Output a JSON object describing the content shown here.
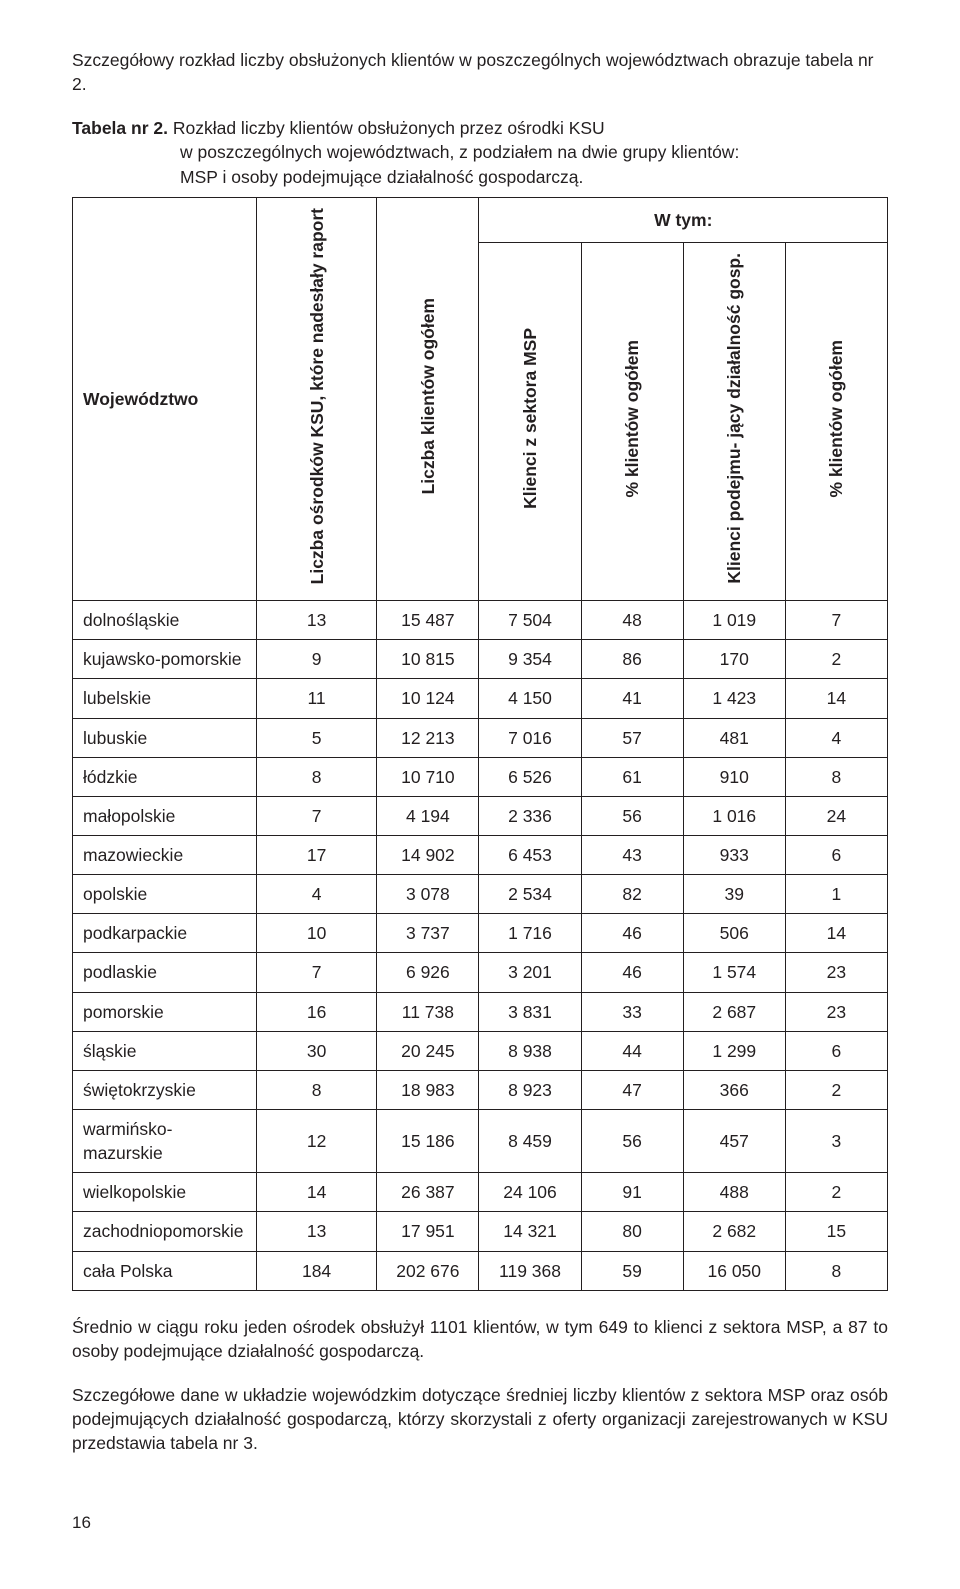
{
  "intro": "Szczegółowy rozkład liczby obsłużonych klientów w poszczególnych województwach obrazuje tabela nr 2.",
  "caption": {
    "label": "Tabela nr 2.",
    "desc_line1": "Rozkład liczby klientów obsłużonych przez ośrodki KSU",
    "desc_line2": "w poszczególnych województwach, z podziałem na dwie grupy klientów:",
    "desc_line3": "MSP i osoby podejmujące działalność gospodarczą."
  },
  "headers": {
    "row": "Województwo",
    "c1": "Liczba ośrodków\nKSU, które nadesłały\nraport",
    "c2": "Liczba klientów\nogółem",
    "group": "W tym:",
    "c3": "Klienci z sektora\nMSP",
    "c4": "% klientów\nogółem",
    "c5": "Klienci podejmu-\njący działalność\ngosp.",
    "c6": "% klientów\nogółem"
  },
  "rows": [
    {
      "name": "dolnośląskie",
      "v": [
        "13",
        "15 487",
        "7 504",
        "48",
        "1 019",
        "7"
      ]
    },
    {
      "name": "kujawsko-pomorskie",
      "v": [
        "9",
        "10 815",
        "9 354",
        "86",
        "170",
        "2"
      ]
    },
    {
      "name": "lubelskie",
      "v": [
        "11",
        "10 124",
        "4 150",
        "41",
        "1 423",
        "14"
      ]
    },
    {
      "name": "lubuskie",
      "v": [
        "5",
        "12 213",
        "7 016",
        "57",
        "481",
        "4"
      ]
    },
    {
      "name": "łódzkie",
      "v": [
        "8",
        "10 710",
        "6 526",
        "61",
        "910",
        "8"
      ]
    },
    {
      "name": "małopolskie",
      "v": [
        "7",
        "4 194",
        "2 336",
        "56",
        "1 016",
        "24"
      ]
    },
    {
      "name": "mazowieckie",
      "v": [
        "17",
        "14 902",
        "6 453",
        "43",
        "933",
        "6"
      ]
    },
    {
      "name": "opolskie",
      "v": [
        "4",
        "3 078",
        "2 534",
        "82",
        "39",
        "1"
      ]
    },
    {
      "name": "podkarpackie",
      "v": [
        "10",
        "3 737",
        "1 716",
        "46",
        "506",
        "14"
      ]
    },
    {
      "name": "podlaskie",
      "v": [
        "7",
        "6 926",
        "3 201",
        "46",
        "1 574",
        "23"
      ]
    },
    {
      "name": "pomorskie",
      "v": [
        "16",
        "11 738",
        "3 831",
        "33",
        "2 687",
        "23"
      ]
    },
    {
      "name": "śląskie",
      "v": [
        "30",
        "20 245",
        "8 938",
        "44",
        "1 299",
        "6"
      ]
    },
    {
      "name": "świętokrzyskie",
      "v": [
        "8",
        "18 983",
        "8 923",
        "47",
        "366",
        "2"
      ]
    },
    {
      "name": "warmińsko-mazurskie",
      "v": [
        "12",
        "15 186",
        "8 459",
        "56",
        "457",
        "3"
      ]
    },
    {
      "name": "wielkopolskie",
      "v": [
        "14",
        "26 387",
        "24 106",
        "91",
        "488",
        "2"
      ]
    },
    {
      "name": "zachodniopomorskie",
      "v": [
        "13",
        "17 951",
        "14 321",
        "80",
        "2 682",
        "15"
      ]
    },
    {
      "name": "cała Polska",
      "v": [
        "184",
        "202 676",
        "119 368",
        "59",
        "16 050",
        "8"
      ]
    }
  ],
  "para1": "Średnio w ciągu roku jeden ośrodek obsłużył 1101 klientów, w tym 649 to klienci z sektora MSP, a 87 to osoby podejmujące działalność gospodarczą.",
  "para2": "Szczegółowe dane w układzie wojewódzkim dotyczące średniej liczby klientów z sektora MSP oraz osób podejmujących działalność gospodarczą, którzy skorzystali z oferty organizacji zarejestrowanych w KSU przedstawia tabela nr 3.",
  "page_number": "16"
}
